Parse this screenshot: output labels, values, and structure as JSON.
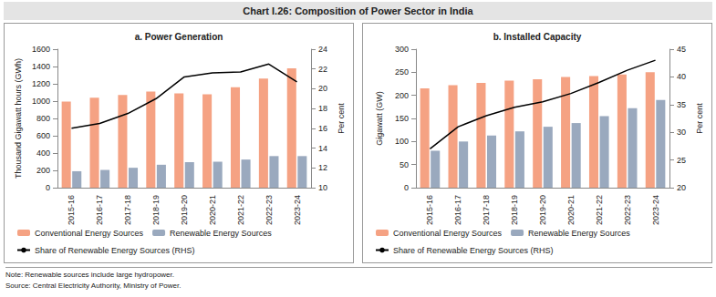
{
  "title": "Chart I.26: Composition of Power Sector in India",
  "note": "Note: Renewable sources include large hydropower.",
  "source": "Source: Central Electricity Authority, Ministry of Power.",
  "chart_data": [
    {
      "type": "bar",
      "title": "a. Power Generation",
      "categories": [
        "2015-16",
        "2016-17",
        "2017-18",
        "2018-19",
        "2019-20",
        "2020-21",
        "2021-22",
        "2022-23",
        "2023-24"
      ],
      "series": [
        {
          "name": "Conventional Energy Sources",
          "type": "bar",
          "color": "#f5a283",
          "values": [
            995,
            1040,
            1070,
            1110,
            1090,
            1080,
            1160,
            1260,
            1380
          ]
        },
        {
          "name": "Renewable Energy Sources",
          "type": "bar",
          "color": "#9aa9be",
          "values": [
            190,
            205,
            230,
            265,
            295,
            300,
            325,
            365,
            365
          ]
        },
        {
          "name": "Share of Renewable Energy Sources (RHS)",
          "type": "line",
          "color": "#000000",
          "axis": "y2",
          "values": [
            16.0,
            16.5,
            17.5,
            19.0,
            21.2,
            21.6,
            21.7,
            22.5,
            20.7
          ]
        }
      ],
      "y_label": "Thousand Gigawatt hours (GWh)",
      "y2_label": "Per cent",
      "ylim": [
        0,
        1600
      ],
      "yticks": [
        0,
        200,
        400,
        600,
        800,
        1000,
        1200,
        1400,
        1600
      ],
      "y2lim": [
        10,
        24
      ],
      "y2ticks": [
        10,
        12,
        14,
        16,
        18,
        20,
        22,
        24
      ],
      "grid": false,
      "legend": "bottom"
    },
    {
      "type": "bar",
      "title": "b. Installed Capacity",
      "categories": [
        "2015-16",
        "2016-17",
        "2017-18",
        "2018-19",
        "2019-20",
        "2020-21",
        "2021-22",
        "2022-23",
        "2023-24"
      ],
      "series": [
        {
          "name": "Conventional Energy Sources",
          "type": "bar",
          "color": "#f5a283",
          "values": [
            215,
            222,
            227,
            232,
            235,
            240,
            242,
            245,
            250
          ]
        },
        {
          "name": "Renewable Energy Sources",
          "type": "bar",
          "color": "#9aa9be",
          "values": [
            80,
            100,
            113,
            122,
            132,
            140,
            155,
            172,
            190
          ]
        },
        {
          "name": "Share of Renewable Energy Sources (RHS)",
          "type": "line",
          "color": "#000000",
          "axis": "y2",
          "values": [
            27.0,
            31.0,
            33.0,
            34.5,
            35.5,
            37.0,
            39.0,
            41.2,
            43.0
          ]
        }
      ],
      "y_label": "Gigawatt (GW)",
      "y2_label": "Per cent",
      "ylim": [
        0,
        300
      ],
      "yticks": [
        0,
        50,
        100,
        150,
        200,
        250,
        300
      ],
      "y2lim": [
        20,
        45
      ],
      "y2ticks": [
        20,
        25,
        30,
        35,
        40,
        45
      ],
      "grid": false,
      "legend": "bottom"
    }
  ]
}
